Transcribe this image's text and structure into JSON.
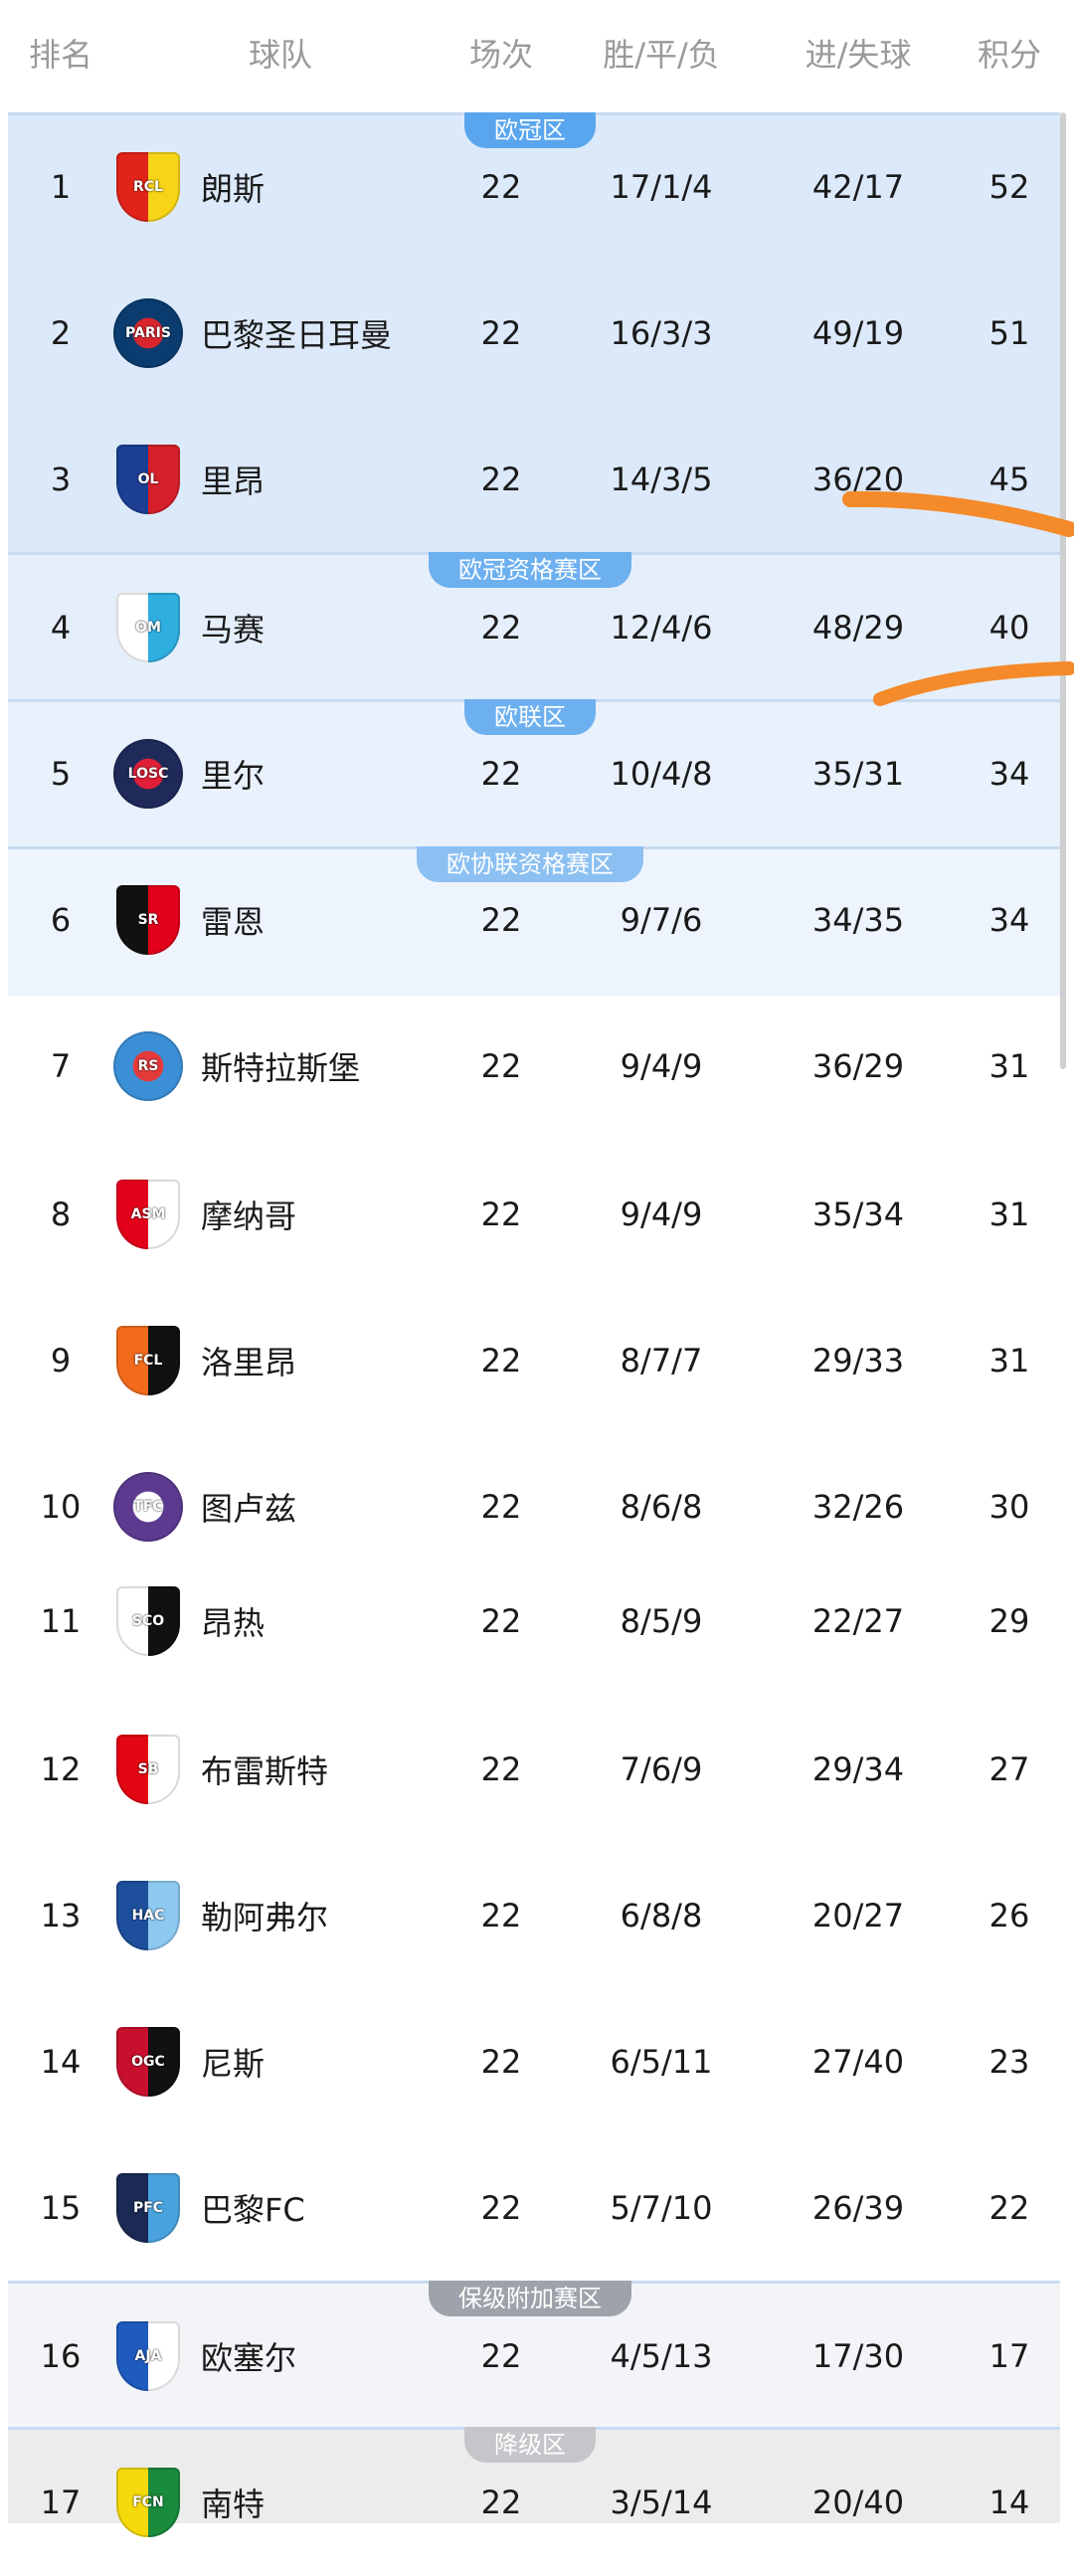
{
  "header": {
    "rank": "排名",
    "team": "球队",
    "played": "场次",
    "wdl": "胜/平/负",
    "goals": "进/失球",
    "points": "积分"
  },
  "zones": [
    {
      "label": "欧冠区",
      "badge_color": "#5aa6ee",
      "bg": "#dce9fa"
    },
    {
      "label": "欧冠资格赛区",
      "badge_color": "#6db0f0",
      "bg": "#e5effb"
    },
    {
      "label": "欧联区",
      "badge_color": "#6db0f0",
      "bg": "#e8f1fc"
    },
    {
      "label": "欧协联资格赛区",
      "badge_color": "#8cc0f2",
      "bg": "#eef4fd"
    },
    {
      "label": "保级附加赛区",
      "badge_color": "#9ea3ab",
      "bg": "#f2f4f8"
    },
    {
      "label": "降级区",
      "badge_color": "#c4c6ca",
      "bg": "#ececec"
    }
  ],
  "teams": [
    {
      "rank": "1",
      "name": "朗斯",
      "played": "22",
      "wdl": "17/1/4",
      "goals": "42/17",
      "points": "52",
      "logo": {
        "icon": "rc-lens-crest-icon",
        "text": "RCL",
        "colors": [
          "#e2231a",
          "#f7d417"
        ],
        "shape": "shield"
      }
    },
    {
      "rank": "2",
      "name": "巴黎圣日耳曼",
      "played": "22",
      "wdl": "16/3/3",
      "goals": "49/19",
      "points": "51",
      "logo": {
        "icon": "psg-crest-icon",
        "text": "PARIS",
        "colors": [
          "#0b3c6f",
          "#d8262c"
        ],
        "shape": "circle"
      }
    },
    {
      "rank": "3",
      "name": "里昂",
      "played": "22",
      "wdl": "14/3/5",
      "goals": "36/20",
      "points": "45",
      "logo": {
        "icon": "olympique-lyonnais-crest-icon",
        "text": "OL",
        "colors": [
          "#1c3f94",
          "#d6202a"
        ],
        "shape": "shield"
      }
    },
    {
      "rank": "4",
      "name": "马赛",
      "played": "22",
      "wdl": "12/4/6",
      "goals": "48/29",
      "points": "40",
      "logo": {
        "icon": "marseille-crest-icon",
        "text": "OM",
        "colors": [
          "#ffffff",
          "#2faee0"
        ],
        "shape": "shield"
      }
    },
    {
      "rank": "5",
      "name": "里尔",
      "played": "22",
      "wdl": "10/4/8",
      "goals": "35/31",
      "points": "34",
      "logo": {
        "icon": "losc-lille-crest-icon",
        "text": "LOSC",
        "colors": [
          "#1f2a5a",
          "#e01e37"
        ],
        "shape": "circle"
      }
    },
    {
      "rank": "6",
      "name": "雷恩",
      "played": "22",
      "wdl": "9/7/6",
      "goals": "34/35",
      "points": "34",
      "logo": {
        "icon": "stade-rennais-crest-icon",
        "text": "SR",
        "colors": [
          "#111111",
          "#e2001a"
        ],
        "shape": "shield"
      }
    },
    {
      "rank": "7",
      "name": "斯特拉斯堡",
      "played": "22",
      "wdl": "9/4/9",
      "goals": "36/29",
      "points": "31",
      "logo": {
        "icon": "strasbourg-crest-icon",
        "text": "RS",
        "colors": [
          "#3b8fd6",
          "#e53a3a"
        ],
        "shape": "circle"
      }
    },
    {
      "rank": "8",
      "name": "摩纳哥",
      "played": "22",
      "wdl": "9/4/9",
      "goals": "35/34",
      "points": "31",
      "logo": {
        "icon": "monaco-crest-icon",
        "text": "ASM",
        "colors": [
          "#e3001b",
          "#ffffff"
        ],
        "shape": "shield"
      }
    },
    {
      "rank": "9",
      "name": "洛里昂",
      "played": "22",
      "wdl": "8/7/7",
      "goals": "29/33",
      "points": "31",
      "logo": {
        "icon": "lorient-crest-icon",
        "text": "FCL",
        "colors": [
          "#f26b1d",
          "#111111"
        ],
        "shape": "shield"
      }
    },
    {
      "rank": "10",
      "name": "图卢兹",
      "played": "22",
      "wdl": "8/6/8",
      "goals": "32/26",
      "points": "30",
      "logo": {
        "icon": "toulouse-crest-icon",
        "text": "TFC",
        "colors": [
          "#5b3a8f",
          "#ffffff"
        ],
        "shape": "circle"
      }
    },
    {
      "rank": "11",
      "name": "昂热",
      "played": "22",
      "wdl": "8/5/9",
      "goals": "22/27",
      "points": "29",
      "logo": {
        "icon": "angers-sco-crest-icon",
        "text": "SCO",
        "colors": [
          "#ffffff",
          "#111111"
        ],
        "shape": "shield"
      }
    },
    {
      "rank": "12",
      "name": "布雷斯特",
      "played": "22",
      "wdl": "7/6/9",
      "goals": "29/34",
      "points": "27",
      "logo": {
        "icon": "brest-crest-icon",
        "text": "SB",
        "colors": [
          "#e30613",
          "#ffffff"
        ],
        "shape": "shield"
      }
    },
    {
      "rank": "13",
      "name": "勒阿弗尔",
      "played": "22",
      "wdl": "6/8/8",
      "goals": "20/27",
      "points": "26",
      "logo": {
        "icon": "le-havre-crest-icon",
        "text": "HAC",
        "colors": [
          "#1e4f9c",
          "#8cc8ef"
        ],
        "shape": "shield"
      }
    },
    {
      "rank": "14",
      "name": "尼斯",
      "played": "22",
      "wdl": "6/5/11",
      "goals": "27/40",
      "points": "23",
      "logo": {
        "icon": "ogc-nice-crest-icon",
        "text": "OGC",
        "colors": [
          "#c8102e",
          "#111111"
        ],
        "shape": "shield"
      }
    },
    {
      "rank": "15",
      "name": "巴黎FC",
      "played": "22",
      "wdl": "5/7/10",
      "goals": "26/39",
      "points": "22",
      "logo": {
        "icon": "paris-fc-crest-icon",
        "text": "PFC",
        "colors": [
          "#1b2a55",
          "#4aa3df"
        ],
        "shape": "shield"
      }
    },
    {
      "rank": "16",
      "name": "欧塞尔",
      "played": "22",
      "wdl": "4/5/13",
      "goals": "17/30",
      "points": "17",
      "logo": {
        "icon": "auxerre-crest-icon",
        "text": "AJA",
        "colors": [
          "#1f5bbf",
          "#ffffff"
        ],
        "shape": "shield"
      }
    },
    {
      "rank": "17",
      "name": "南特",
      "played": "22",
      "wdl": "3/5/14",
      "goals": "20/40",
      "points": "14",
      "logo": {
        "icon": "nantes-crest-icon",
        "text": "FCN",
        "colors": [
          "#f5d90a",
          "#1a8a3c"
        ],
        "shape": "shield"
      }
    }
  ],
  "annotation_color": "#f58a2a"
}
